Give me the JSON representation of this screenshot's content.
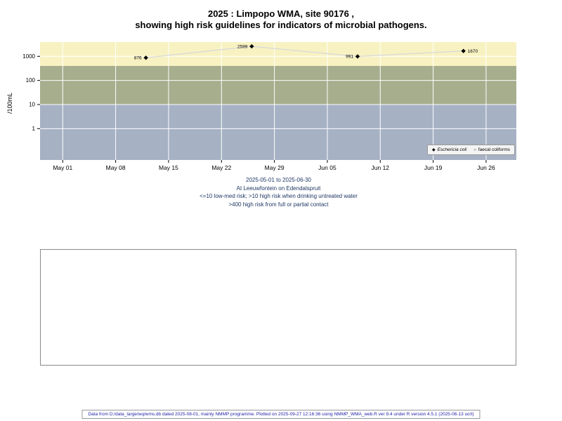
{
  "page": {
    "title_line1": "2025 : Limpopo WMA, site 90176 ,",
    "title_line2": "showing high risk guidelines for indicators of microbial pathogens."
  },
  "chart_data": {
    "type": "scatter",
    "y_axis_label": "/100mL",
    "y_scale": "log",
    "ylim": [
      0.05,
      3900
    ],
    "x_domain": [
      "2025-04-28",
      "2025-06-30"
    ],
    "x_ticks": [
      {
        "date": "2025-05-01",
        "label": "May 01"
      },
      {
        "date": "2025-05-08",
        "label": "May 08"
      },
      {
        "date": "2025-05-15",
        "label": "May 15"
      },
      {
        "date": "2025-05-22",
        "label": "May 22"
      },
      {
        "date": "2025-05-29",
        "label": "May 29"
      },
      {
        "date": "2025-06-05",
        "label": "Jun 05"
      },
      {
        "date": "2025-06-12",
        "label": "Jun 12"
      },
      {
        "date": "2025-06-19",
        "label": "Jun 19"
      },
      {
        "date": "2025-06-26",
        "label": "Jun 26"
      }
    ],
    "y_ticks": [
      {
        "value": 1,
        "label": "1"
      },
      {
        "value": 10,
        "label": "10"
      },
      {
        "value": 100,
        "label": "100"
      },
      {
        "value": 1000,
        "label": "1000"
      }
    ],
    "bands": [
      {
        "name": "high-risk-full-contact",
        "from": 400,
        "to": null,
        "color": "#f8f2c2"
      },
      {
        "name": "high-risk-drinking",
        "from": 10,
        "to": 400,
        "color": "#a7ae8e"
      },
      {
        "name": "low-med-risk",
        "from": null,
        "to": 10,
        "color": "#a6b1c4"
      }
    ],
    "grid_color": "#ffffff",
    "line_color": "#d9d9d9",
    "marker_color": "#000000",
    "series": [
      {
        "name": "Eschericia coli",
        "marker": "filled-diamond",
        "points": [
          {
            "date": "2025-05-12",
            "value": 876,
            "label": "876",
            "label_side": "left"
          },
          {
            "date": "2025-05-26",
            "value": 2599,
            "label": "2599",
            "label_side": "left"
          },
          {
            "date": "2025-06-09",
            "value": 991,
            "label": "991",
            "label_side": "left"
          },
          {
            "date": "2025-06-23",
            "value": 1670,
            "label": "1670",
            "label_side": "right"
          }
        ]
      },
      {
        "name": "faecal coliforms",
        "marker": "open-circle",
        "points": []
      }
    ]
  },
  "legend": {
    "entries": [
      {
        "marker": "◆",
        "label": "Eschericia coli"
      },
      {
        "marker": "○",
        "label": "faecal coliforms"
      }
    ]
  },
  "caption": {
    "line1": "2025-05-01 to 2025-06-30",
    "line2": "At Leeuwfontein on Edendalspruit",
    "line3": "<=10 low-med risk; >10 high risk when drinking untreated water",
    "line4": ">400 high risk from full or partial contact"
  },
  "footer": {
    "text": "Data from D:/data_large/wq/wms.db dated 2025-08-01, mainly NMMP programme. Plotted on 2025-09-27 12:16:36 using NMMP_WMA_web.R ver 9.4 under R version 4.5.1 (2025-06-13 ucrt)"
  }
}
